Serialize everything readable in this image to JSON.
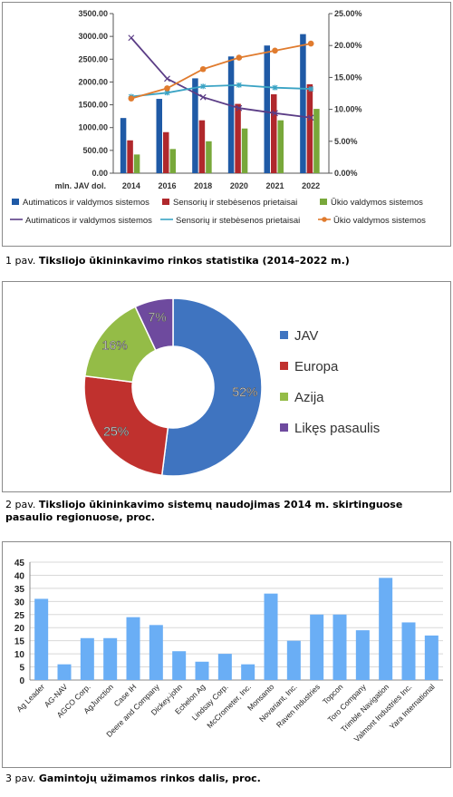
{
  "chart_data": [
    {
      "type": "bar+line",
      "x_label_prefix": "mln. JAV dol.",
      "categories": [
        "2014",
        "2016",
        "2018",
        "2020",
        "2021",
        "2022"
      ],
      "y_left_ticks": [
        "0.00",
        "500.00",
        "1000.00",
        "1500.00",
        "2000.00",
        "2500.00",
        "3000.00",
        "3500.00"
      ],
      "y_right_ticks": [
        "0.00%",
        "5.00%",
        "10.00%",
        "15.00%",
        "20.00%",
        "25.00%"
      ],
      "ylim_left": [
        0,
        3500
      ],
      "ylim_right": [
        0,
        25
      ],
      "bar_series": [
        {
          "name": "Autimaticos ir valdymos sistemos",
          "color": "#1f5aa6",
          "values": [
            1210,
            1630,
            2080,
            2560,
            2800,
            3050
          ]
        },
        {
          "name": "Sensorių ir stebėsenos prietaisai",
          "color": "#b0282c",
          "values": [
            720,
            900,
            1160,
            1520,
            1730,
            1950
          ]
        },
        {
          "name": "Ūkio valdymos sistemos",
          "color": "#78a83a",
          "values": [
            410,
            530,
            700,
            980,
            1160,
            1410
          ]
        }
      ],
      "line_series": [
        {
          "name": "Autimaticos ir valdymos sistemos",
          "color": "#5b3d86",
          "values": [
            21.2,
            14.8,
            11.9,
            10.2,
            9.4,
            8.7
          ]
        },
        {
          "name": "Sensorių ir stebėsenos prietaisai",
          "color": "#3aa3c4",
          "values": [
            12.0,
            12.6,
            13.6,
            13.8,
            13.4,
            13.2
          ]
        },
        {
          "name": "Ūkio valdymos sistemos",
          "color": "#e07b2e",
          "values": [
            11.7,
            13.3,
            16.3,
            18.1,
            19.2,
            20.3
          ]
        }
      ],
      "caption_num": "1 pav.",
      "caption_title": "Tiksliojo ūkininkavimo rinkos statistika (2014–2022 m.)"
    },
    {
      "type": "pie",
      "slices": [
        {
          "label": "JAV",
          "value": 52,
          "value_label": "52%",
          "color": "#3f74c0"
        },
        {
          "label": "Europa",
          "value": 25,
          "value_label": "25%",
          "color": "#c0312e"
        },
        {
          "label": "Azija",
          "value": 16,
          "value_label": "16%",
          "color": "#94bc47"
        },
        {
          "label": "Likęs pasaulis",
          "value": 7,
          "value_label": "7%",
          "color": "#6e4a9e"
        }
      ],
      "caption_num": "2 pav.",
      "caption_title": "Tiksliojo ūkininkavimo sistemų naudojimas 2014 m. skirtinguose pasaulio regionuose, proc."
    },
    {
      "type": "bar",
      "color": "#6aaef5",
      "ylim": [
        0,
        45
      ],
      "y_ticks": [
        "0",
        "5",
        "10",
        "15",
        "20",
        "25",
        "30",
        "35",
        "40",
        "45"
      ],
      "categories": [
        "Ag Leader",
        "AG-NAV",
        "AGCO Corp.",
        "AgJunction",
        "Case IH",
        "Deere and Company",
        "Dickey-john",
        "Echelon Ag",
        "Lindsay Corp.",
        "McCrometer, Inc.",
        "Monsanto",
        "Novariant, Inc.",
        "Raven Industries",
        "Topcon",
        "Toro Company",
        "Trimble Navigation",
        "Valmont Industries Inc.",
        "Yara International"
      ],
      "values": [
        31,
        6,
        16,
        16,
        24,
        21,
        11,
        7,
        10,
        6,
        33,
        15,
        25,
        25,
        19,
        39,
        22,
        17
      ],
      "caption_num": "3 pav.",
      "caption_title": "Gamintojų užimamos rinkos dalis, proc."
    }
  ]
}
